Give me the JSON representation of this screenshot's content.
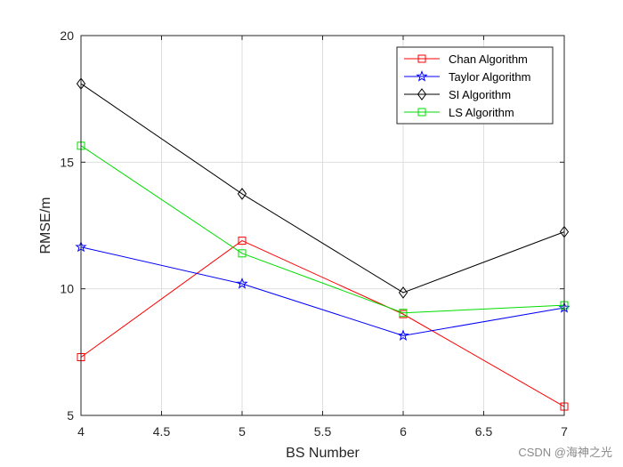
{
  "chart_data": {
    "type": "line",
    "title": "",
    "xlabel": "BS Number",
    "ylabel": "RMSE/m",
    "xlim": [
      4,
      7
    ],
    "ylim": [
      5,
      20
    ],
    "xticks": [
      "4",
      "4.5",
      "5",
      "5.5",
      "6",
      "6.5",
      "7"
    ],
    "yticks": [
      "5",
      "10",
      "15",
      "20"
    ],
    "grid": true,
    "legend_position": "top-right",
    "x": [
      4,
      5,
      6,
      7
    ],
    "series": [
      {
        "name": "Chan Algorithm",
        "color": "#ff0000",
        "marker": "square",
        "values": [
          7.3,
          11.9,
          9.0,
          5.35
        ]
      },
      {
        "name": "Taylor Algorithm",
        "color": "#0000ff",
        "marker": "star",
        "values": [
          11.65,
          10.2,
          8.15,
          9.25
        ]
      },
      {
        "name": "SI Algorithm",
        "color": "#000000",
        "marker": "diamond",
        "values": [
          18.1,
          13.75,
          9.85,
          12.25
        ]
      },
      {
        "name": "LS Algorithm",
        "color": "#00dd00",
        "marker": "square",
        "values": [
          15.65,
          11.4,
          9.05,
          9.35
        ]
      }
    ]
  },
  "watermark": "CSDN @海神之光"
}
